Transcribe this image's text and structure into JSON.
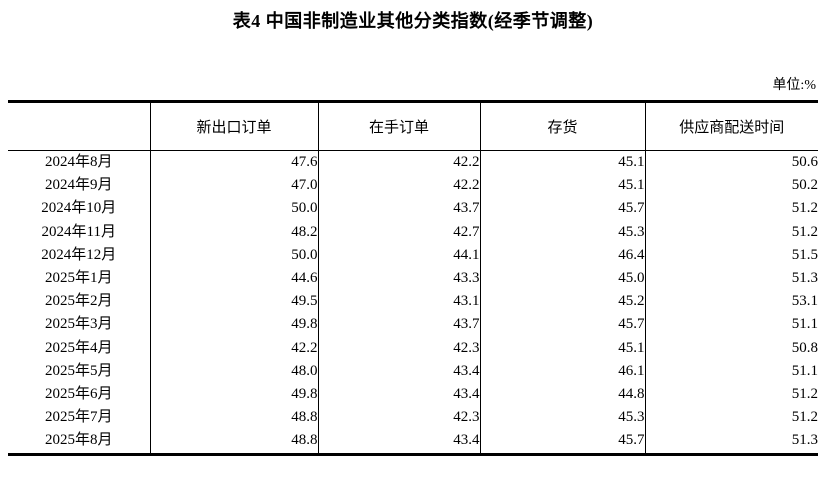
{
  "title": "表4 中国非制造业其他分类指数(经季节调整)",
  "unit_label": "单位:%",
  "colors": {
    "text": "#000000",
    "border": "#000000",
    "background": "#ffffff"
  },
  "table": {
    "columns": [
      "",
      "新出口订单",
      "在手订单",
      "存货",
      "供应商配送时间"
    ],
    "rows": [
      {
        "period": "2024年8月",
        "values": [
          "47.6",
          "42.2",
          "45.1",
          "50.6"
        ]
      },
      {
        "period": "2024年9月",
        "values": [
          "47.0",
          "42.2",
          "45.1",
          "50.2"
        ]
      },
      {
        "period": "2024年10月",
        "values": [
          "50.0",
          "43.7",
          "45.7",
          "51.2"
        ]
      },
      {
        "period": "2024年11月",
        "values": [
          "48.2",
          "42.7",
          "45.3",
          "51.2"
        ]
      },
      {
        "period": "2024年12月",
        "values": [
          "50.0",
          "44.1",
          "46.4",
          "51.5"
        ]
      },
      {
        "period": "2025年1月",
        "values": [
          "44.6",
          "43.3",
          "45.0",
          "51.3"
        ]
      },
      {
        "period": "2025年2月",
        "values": [
          "49.5",
          "43.1",
          "45.2",
          "53.1"
        ]
      },
      {
        "period": "2025年3月",
        "values": [
          "49.8",
          "43.7",
          "45.7",
          "51.1"
        ]
      },
      {
        "period": "2025年4月",
        "values": [
          "42.2",
          "42.3",
          "45.1",
          "50.8"
        ]
      },
      {
        "period": "2025年5月",
        "values": [
          "48.0",
          "43.4",
          "46.1",
          "51.1"
        ]
      },
      {
        "period": "2025年6月",
        "values": [
          "49.8",
          "43.4",
          "44.8",
          "51.2"
        ]
      },
      {
        "period": "2025年7月",
        "values": [
          "48.8",
          "42.3",
          "45.3",
          "51.2"
        ]
      },
      {
        "period": "2025年8月",
        "values": [
          "48.8",
          "43.4",
          "45.7",
          "51.3"
        ]
      }
    ]
  }
}
